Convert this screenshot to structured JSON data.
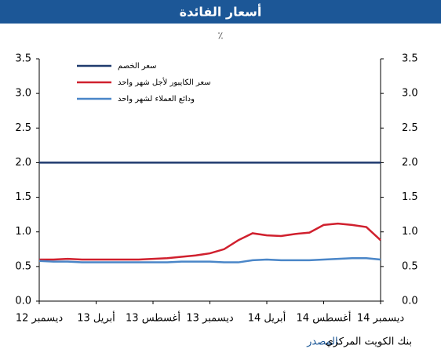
{
  "chart_data": {
    "type": "line",
    "title": "أسعار الفائدة",
    "subtitle": "٪",
    "categories": [
      "ديسمبر 12",
      null,
      null,
      null,
      "أبريل 13",
      null,
      null,
      null,
      "أغسطس 13",
      null,
      null,
      null,
      "ديسمبر 13",
      null,
      null,
      null,
      "أبريل 14",
      null,
      null,
      null,
      "أغسطس 14",
      null,
      null,
      null,
      "ديسمبر 14"
    ],
    "series": [
      {
        "name": "سعر الخصم",
        "color": "#1f3a6e",
        "values": [
          2.0,
          2.0,
          2.0,
          2.0,
          2.0,
          2.0,
          2.0,
          2.0,
          2.0,
          2.0,
          2.0,
          2.0,
          2.0,
          2.0,
          2.0,
          2.0,
          2.0,
          2.0,
          2.0,
          2.0,
          2.0,
          2.0,
          2.0,
          2.0,
          2.0
        ]
      },
      {
        "name": "سعر الكايبور لأجل شهر واحد",
        "color": "#d0202e",
        "values": [
          0.6,
          0.6,
          0.61,
          0.6,
          0.6,
          0.6,
          0.6,
          0.6,
          0.61,
          0.62,
          0.64,
          0.66,
          0.69,
          0.75,
          0.88,
          0.98,
          0.95,
          0.94,
          0.97,
          0.99,
          1.1,
          1.12,
          1.1,
          1.07,
          0.88
        ]
      },
      {
        "name": "ودائع العملاء لشهر واحد",
        "color": "#4a86c8",
        "values": [
          0.58,
          0.57,
          0.57,
          0.56,
          0.56,
          0.56,
          0.56,
          0.56,
          0.56,
          0.56,
          0.57,
          0.57,
          0.57,
          0.56,
          0.56,
          0.59,
          0.6,
          0.59,
          0.59,
          0.59,
          0.6,
          0.61,
          0.62,
          0.62,
          0.6
        ]
      }
    ],
    "ylim": [
      0,
      3.5
    ],
    "yticks": [
      {
        "value": 0,
        "label": "0.0"
      },
      {
        "value": 0.5,
        "label": "0.5"
      },
      {
        "value": 1,
        "label": "1.0"
      },
      {
        "value": 1.5,
        "label": "1.5"
      },
      {
        "value": 2,
        "label": "2.0"
      },
      {
        "value": 2.5,
        "label": "2.5"
      },
      {
        "value": 3,
        "label": "3.0"
      },
      {
        "value": 3.5,
        "label": "3.5"
      }
    ],
    "y2lim": [
      0,
      3.5
    ],
    "y2ticks": [
      {
        "value": 0,
        "label": "0.0"
      },
      {
        "value": 0.5,
        "label": "0.5"
      },
      {
        "value": 1,
        "label": "1.0"
      },
      {
        "value": 1.5,
        "label": "1.5"
      },
      {
        "value": 2,
        "label": "2.0"
      },
      {
        "value": 2.5,
        "label": "2.5"
      },
      {
        "value": 3,
        "label": "3.0"
      },
      {
        "value": 3.5,
        "label": "3.5"
      }
    ],
    "legend": "top-left",
    "source_label": "المصدر:",
    "source": "بنك الكويت المركزي"
  }
}
